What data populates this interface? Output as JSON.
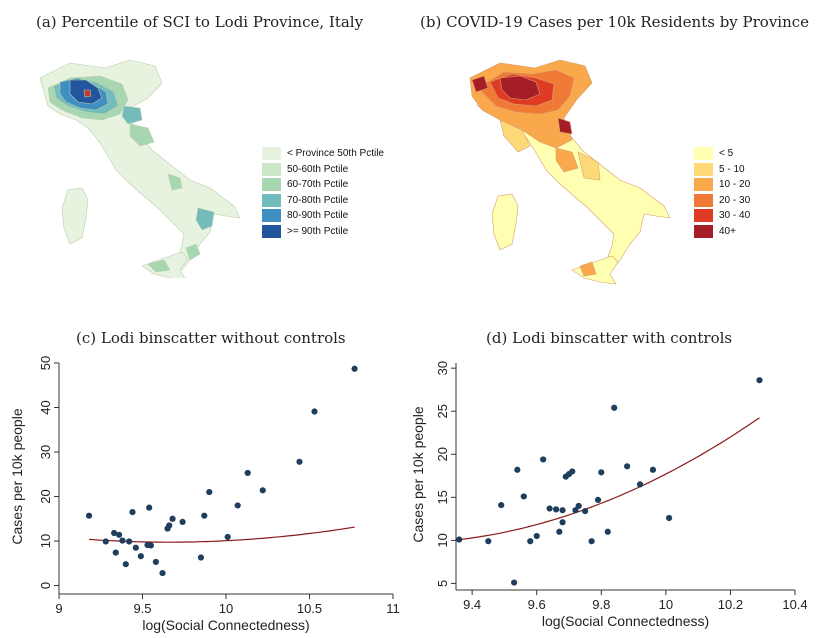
{
  "panels": {
    "a": {
      "title": "(a) Percentile of SCI to Lodi Province, Italy",
      "legend": [
        {
          "label": "< Province 50th Pctile",
          "color": "#e8f3df"
        },
        {
          "label": "50-60th Pctile",
          "color": "#cde6c6"
        },
        {
          "label": "60-70th Pctile",
          "color": "#a8d6b0"
        },
        {
          "label": "70-80th Pctile",
          "color": "#74bcbb"
        },
        {
          "label": "80-90th Pctile",
          "color": "#3f8fc3"
        },
        {
          "label": ">= 90th Pctile",
          "color": "#23549e"
        }
      ]
    },
    "b": {
      "title": "(b) COVID-19 Cases per 10k Residents by Province",
      "legend": [
        {
          "label": "< 5",
          "color": "#ffffb2"
        },
        {
          "label": "5 - 10",
          "color": "#fdd978"
        },
        {
          "label": "10 - 20",
          "color": "#f9a94c"
        },
        {
          "label": "20 - 30",
          "color": "#f07a35"
        },
        {
          "label": "30 - 40",
          "color": "#df3b24"
        },
        {
          "label": "40+",
          "color": "#a51d26"
        }
      ]
    }
  },
  "chart_data": [
    {
      "type": "scatter",
      "title": "(c) Lodi binscatter without controls",
      "xlabel": "log(Social Connectedness)",
      "ylabel": "Cases per 10k people",
      "xlim": [
        9,
        11
      ],
      "ylim": [
        -1,
        50
      ],
      "xticks": [
        9,
        9.5,
        10,
        10.5,
        11
      ],
      "xtick_labels": [
        "9",
        "9.5",
        "10",
        "10.5",
        "11"
      ],
      "yticks": [
        0,
        10,
        20,
        30,
        40,
        50
      ],
      "ytick_labels": [
        "0",
        "10",
        "20",
        "30",
        "40",
        "50"
      ],
      "grid": false,
      "point_color": "#1f3d5c",
      "fit_color": "#8b1a1a",
      "points": [
        {
          "x": 9.18,
          "y": 15.7
        },
        {
          "x": 9.28,
          "y": 9.9
        },
        {
          "x": 9.33,
          "y": 11.8
        },
        {
          "x": 9.34,
          "y": 7.4
        },
        {
          "x": 9.36,
          "y": 11.4
        },
        {
          "x": 9.38,
          "y": 10.1
        },
        {
          "x": 9.4,
          "y": 4.8
        },
        {
          "x": 9.42,
          "y": 9.9
        },
        {
          "x": 9.44,
          "y": 16.5
        },
        {
          "x": 9.46,
          "y": 8.5
        },
        {
          "x": 9.49,
          "y": 6.6
        },
        {
          "x": 9.53,
          "y": 9.1
        },
        {
          "x": 9.54,
          "y": 17.5
        },
        {
          "x": 9.55,
          "y": 9.0
        },
        {
          "x": 9.58,
          "y": 5.3
        },
        {
          "x": 9.62,
          "y": 2.8
        },
        {
          "x": 9.65,
          "y": 12.8
        },
        {
          "x": 9.66,
          "y": 13.5
        },
        {
          "x": 9.68,
          "y": 15.0
        },
        {
          "x": 9.74,
          "y": 14.3
        },
        {
          "x": 9.85,
          "y": 6.3
        },
        {
          "x": 9.87,
          "y": 15.7
        },
        {
          "x": 9.9,
          "y": 21.0
        },
        {
          "x": 10.01,
          "y": 10.9
        },
        {
          "x": 10.07,
          "y": 18.0
        },
        {
          "x": 10.13,
          "y": 25.3
        },
        {
          "x": 10.22,
          "y": 21.4
        },
        {
          "x": 10.44,
          "y": 27.8
        },
        {
          "x": 10.53,
          "y": 39.1
        },
        {
          "x": 10.77,
          "y": 48.7
        }
      ],
      "fit": {
        "x": [
          9.18,
          10.77
        ],
        "coef": [
          2.73,
          -52.72,
          264.27
        ]
      }
    },
    {
      "type": "scatter",
      "title": "(d) Lodi binscatter with controls",
      "xlabel": "log(Social Connectedness)",
      "ylabel": "Cases per 10k people",
      "xlim": [
        9.35,
        10.4
      ],
      "ylim": [
        4.7,
        30.6
      ],
      "xticks": [
        9.4,
        9.6,
        9.8,
        10,
        10.2,
        10.4
      ],
      "xtick_labels": [
        "9.4",
        "9.6",
        "9.8",
        "10",
        "10.2",
        "10.4"
      ],
      "yticks": [
        5,
        10,
        15,
        20,
        25,
        30
      ],
      "ytick_labels": [
        "5",
        "10",
        "15",
        "20",
        "25",
        "30"
      ],
      "grid": false,
      "point_color": "#1f3d5c",
      "fit_color": "#8b1a1a",
      "points": [
        {
          "x": 9.36,
          "y": 10.1
        },
        {
          "x": 9.45,
          "y": 9.9
        },
        {
          "x": 9.49,
          "y": 14.1
        },
        {
          "x": 9.53,
          "y": 5.1
        },
        {
          "x": 9.54,
          "y": 18.2
        },
        {
          "x": 9.56,
          "y": 15.1
        },
        {
          "x": 9.58,
          "y": 9.9
        },
        {
          "x": 9.6,
          "y": 10.5
        },
        {
          "x": 9.62,
          "y": 19.4
        },
        {
          "x": 9.64,
          "y": 13.7
        },
        {
          "x": 9.66,
          "y": 13.6
        },
        {
          "x": 9.67,
          "y": 11.0
        },
        {
          "x": 9.68,
          "y": 12.1
        },
        {
          "x": 9.68,
          "y": 13.5
        },
        {
          "x": 9.69,
          "y": 17.4
        },
        {
          "x": 9.7,
          "y": 17.7
        },
        {
          "x": 9.71,
          "y": 18.0
        },
        {
          "x": 9.72,
          "y": 13.5
        },
        {
          "x": 9.73,
          "y": 14.0
        },
        {
          "x": 9.75,
          "y": 13.4
        },
        {
          "x": 9.77,
          "y": 9.9
        },
        {
          "x": 9.79,
          "y": 14.7
        },
        {
          "x": 9.8,
          "y": 17.9
        },
        {
          "x": 9.82,
          "y": 11.0
        },
        {
          "x": 9.84,
          "y": 25.4
        },
        {
          "x": 9.88,
          "y": 18.6
        },
        {
          "x": 9.92,
          "y": 16.5
        },
        {
          "x": 9.96,
          "y": 18.2
        },
        {
          "x": 10.01,
          "y": 12.6
        },
        {
          "x": 10.29,
          "y": 28.6
        }
      ],
      "fit": {
        "x": [
          9.36,
          10.29
        ],
        "coef": [
          11.49,
          -210.54,
          974.1
        ]
      }
    }
  ]
}
